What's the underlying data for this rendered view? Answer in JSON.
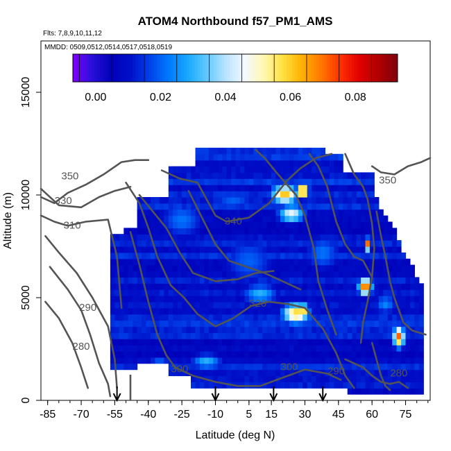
{
  "chart_data": {
    "type": "heatmap",
    "title": "ATOM4 Northbound f57_PM1_AMS",
    "subtitle_flights": "Flts: 7,8,9,10,11,12",
    "subtitle_dates": "MMDD: 0509,0512,0514,0517,0518,0519",
    "xlabel": "Latitude (deg N)",
    "ylabel": "Altitude (m)",
    "xlim": [
      -88,
      86
    ],
    "ylim": [
      0,
      17500
    ],
    "x_ticks": [
      -85,
      -70,
      -55,
      -40,
      -25,
      -10,
      5,
      15,
      30,
      45,
      60,
      75
    ],
    "y_ticks": [
      0,
      5000,
      10000,
      15000
    ],
    "colorbar": {
      "range": [
        -0.007,
        0.093
      ],
      "ticks": [
        0.0,
        0.02,
        0.04,
        0.06,
        0.08
      ],
      "tick_labels": [
        "0.00",
        "0.02",
        "0.04",
        "0.06",
        "0.08"
      ],
      "colors": [
        "#7f00ff",
        "#2a0fd8",
        "#0000b8",
        "#0010c8",
        "#0040e8",
        "#0078ff",
        "#18a8ff",
        "#60c8ff",
        "#b8e4ff",
        "#f4f8ff",
        "#fff8b0",
        "#ffe040",
        "#ffb000",
        "#ff7800",
        "#ff3000",
        "#e00000",
        "#b00000",
        "#800010"
      ]
    },
    "contour_labels": [
      {
        "text": "350",
        "x": -75,
        "y": 10900
      },
      {
        "text": "330",
        "x": -78,
        "y": 9700
      },
      {
        "text": "310",
        "x": -74,
        "y": 8500
      },
      {
        "text": "290",
        "x": -67,
        "y": 4500
      },
      {
        "text": "280",
        "x": -70,
        "y": 2600
      },
      {
        "text": "340",
        "x": -2,
        "y": 8700
      },
      {
        "text": "320",
        "x": 9,
        "y": 4700
      },
      {
        "text": "300",
        "x": -26,
        "y": 1500
      },
      {
        "text": "300",
        "x": 23,
        "y": 1600
      },
      {
        "text": "290",
        "x": 44,
        "y": 1400
      },
      {
        "text": "350",
        "x": 67,
        "y": 10700
      },
      {
        "text": "280",
        "x": 72,
        "y": 1300
      }
    ],
    "arrows_latitude": [
      -54,
      -10,
      16,
      38
    ],
    "ground_mark_latitude": [
      -48
    ]
  }
}
